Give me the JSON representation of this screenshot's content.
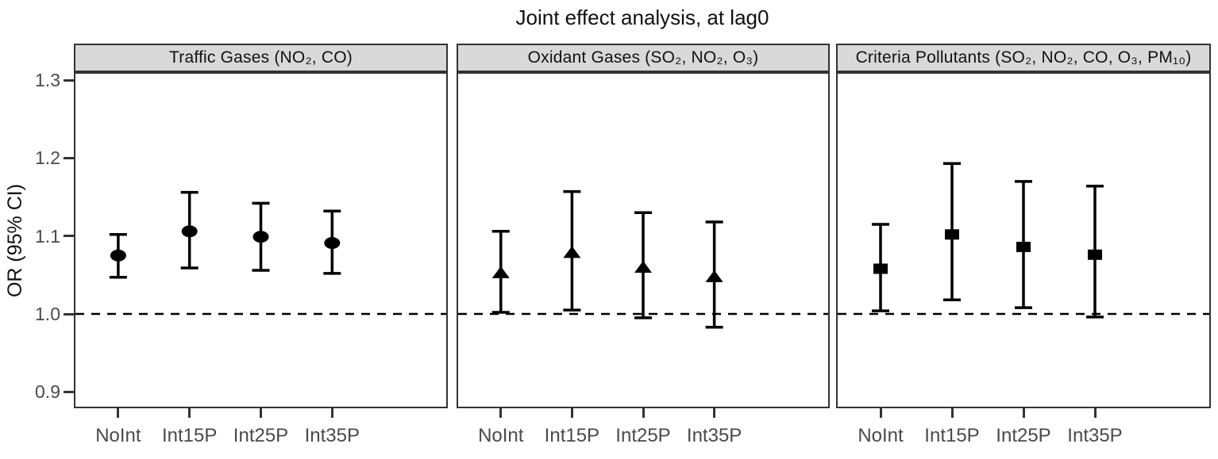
{
  "title": "Joint effect analysis, at lag0",
  "colors": {
    "axis_text": "#4a4a4a",
    "axis_title": "#111111",
    "strip_background": "#d9d9d9",
    "panel_border": "#333333",
    "data": "#000000",
    "background": "#ffffff"
  },
  "chart_data": {
    "type": "scatter",
    "subtype": "point-range forest plot with 3 facets, error bars with caps",
    "title": "Joint effect analysis, at lag0",
    "xlabel": "",
    "ylabel": "OR (95% CI)",
    "ylim": [
      0.88,
      1.31
    ],
    "grid": "off",
    "legend": "none",
    "reference_line": 1.0,
    "reference_line_style": "dashed",
    "y_ticks": [
      {
        "value": 1.3,
        "label": "1.3"
      },
      {
        "value": 1.2,
        "label": "1.2"
      },
      {
        "value": 1.1,
        "label": "1.1"
      },
      {
        "value": 1.0,
        "label": "1.0"
      },
      {
        "value": 0.9,
        "label": "0.9"
      }
    ],
    "categories": [
      "NoInt",
      "Int15P",
      "Int25P",
      "Int35P"
    ],
    "panels": [
      {
        "id": "traffic-gases",
        "label": "Traffic Gases (NO₂, CO)",
        "marker": "circle",
        "series": [
          {
            "category": "NoInt",
            "or": 1.075,
            "ci_low": 1.047,
            "ci_high": 1.102
          },
          {
            "category": "Int15P",
            "or": 1.106,
            "ci_low": 1.059,
            "ci_high": 1.156
          },
          {
            "category": "Int25P",
            "or": 1.099,
            "ci_low": 1.056,
            "ci_high": 1.142
          },
          {
            "category": "Int35P",
            "or": 1.091,
            "ci_low": 1.052,
            "ci_high": 1.132
          }
        ]
      },
      {
        "id": "oxidant-gases",
        "label": "Oxidant Gases (SO₂, NO₂, O₃)",
        "marker": "triangle",
        "series": [
          {
            "category": "NoInt",
            "or": 1.053,
            "ci_low": 1.002,
            "ci_high": 1.106
          },
          {
            "category": "Int15P",
            "or": 1.079,
            "ci_low": 1.005,
            "ci_high": 1.157
          },
          {
            "category": "Int25P",
            "or": 1.06,
            "ci_low": 0.995,
            "ci_high": 1.13
          },
          {
            "category": "Int35P",
            "or": 1.048,
            "ci_low": 0.983,
            "ci_high": 1.118
          }
        ]
      },
      {
        "id": "criteria-pollutants",
        "label": "Criteria Pollutants (SO₂, NO₂, CO, O₃, PM₁₀)",
        "marker": "square",
        "series": [
          {
            "category": "NoInt",
            "or": 1.058,
            "ci_low": 1.004,
            "ci_high": 1.115
          },
          {
            "category": "Int15P",
            "or": 1.102,
            "ci_low": 1.018,
            "ci_high": 1.193
          },
          {
            "category": "Int25P",
            "or": 1.086,
            "ci_low": 1.008,
            "ci_high": 1.17
          },
          {
            "category": "Int35P",
            "or": 1.076,
            "ci_low": 0.996,
            "ci_high": 1.164
          }
        ]
      }
    ]
  }
}
